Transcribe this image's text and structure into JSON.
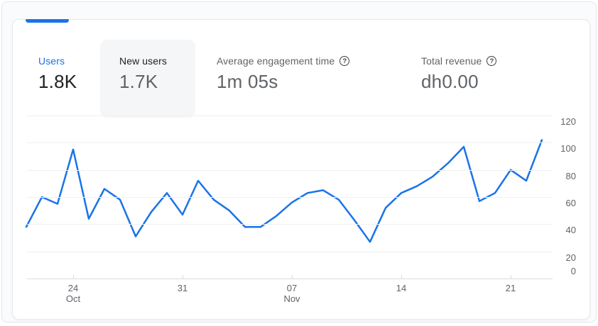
{
  "card": {
    "metrics": [
      {
        "id": "users",
        "label": "Users",
        "value": "1.8K"
      },
      {
        "id": "new-users",
        "label": "New users",
        "value": "1.7K"
      },
      {
        "id": "avg-engagement-time",
        "label": "Average engagement time",
        "value": "1m 05s",
        "help_icon": "?"
      },
      {
        "id": "total-revenue",
        "label": "Total revenue",
        "value": "dh0.00",
        "help_icon": "?"
      }
    ]
  },
  "colors": {
    "accent_blue": "#1a73e8",
    "line_blue": "#1a73e8",
    "dark_text": "#202124",
    "gray_text": "#5f6368",
    "gridline": "#eef0f2",
    "axis_line": "#dadce0",
    "highlight_card_bg": "#f5f6f8"
  },
  "chart_data": {
    "type": "line",
    "series": [
      {
        "name": "Users",
        "values": [
          38,
          60,
          55,
          95,
          44,
          66,
          58,
          31,
          49,
          63,
          47,
          72,
          58,
          50,
          38,
          38,
          46,
          56,
          63,
          65,
          58,
          43,
          27,
          52,
          63,
          68,
          75,
          85,
          97,
          57,
          63,
          80,
          72,
          102
        ]
      }
    ],
    "ylim": [
      0,
      120
    ],
    "y_ticks": [
      0,
      20,
      40,
      60,
      80,
      100,
      120
    ],
    "x_tick_labels": [
      {
        "index": 3,
        "line1": "24",
        "line2": "Oct"
      },
      {
        "index": 10,
        "line1": "31",
        "line2": ""
      },
      {
        "index": 17,
        "line1": "07",
        "line2": "Nov"
      },
      {
        "index": 24,
        "line1": "14",
        "line2": ""
      },
      {
        "index": 31,
        "line1": "21",
        "line2": ""
      }
    ],
    "grid": "horizontal",
    "legend": "none"
  }
}
